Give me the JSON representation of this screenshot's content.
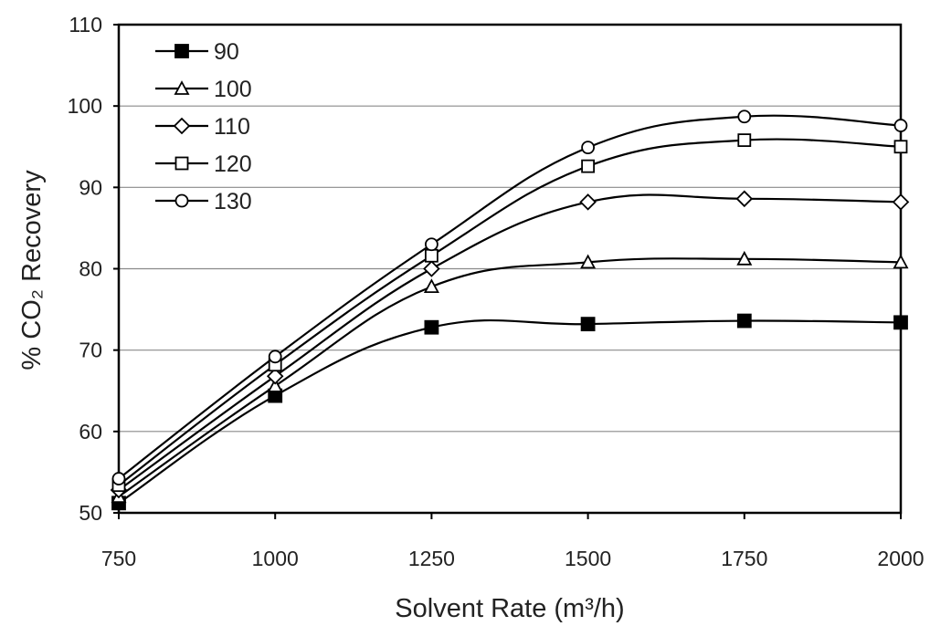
{
  "chart_data": {
    "type": "line",
    "title": "",
    "xlabel": "Solvent Rate (m³/h)",
    "ylabel": "% CO₂ Recovery",
    "x": [
      750,
      1000,
      1250,
      1500,
      1750,
      2000
    ],
    "xlim": [
      750,
      2000
    ],
    "ylim": [
      50,
      110
    ],
    "xticks": [
      "750",
      "1000",
      "1250",
      "1500",
      "1750",
      "2000"
    ],
    "yticks": [
      "50",
      "60",
      "70",
      "80",
      "90",
      "100",
      "110"
    ],
    "grid": "horizontal",
    "legend_position": "top-left",
    "series": [
      {
        "name": "90",
        "marker": "square-filled",
        "values": [
          51.2,
          64.4,
          72.8,
          73.2,
          73.6,
          73.4
        ]
      },
      {
        "name": "100",
        "marker": "triangle-open",
        "values": [
          52.0,
          65.6,
          77.8,
          80.8,
          81.2,
          80.8
        ]
      },
      {
        "name": "110",
        "marker": "diamond-open",
        "values": [
          52.8,
          66.8,
          80.0,
          88.2,
          88.6,
          88.2
        ]
      },
      {
        "name": "120",
        "marker": "square-open",
        "values": [
          53.4,
          68.2,
          81.6,
          92.6,
          95.8,
          95.0
        ]
      },
      {
        "name": "130",
        "marker": "circle-open",
        "values": [
          54.2,
          69.2,
          83.0,
          94.9,
          98.7,
          97.6
        ]
      }
    ]
  }
}
